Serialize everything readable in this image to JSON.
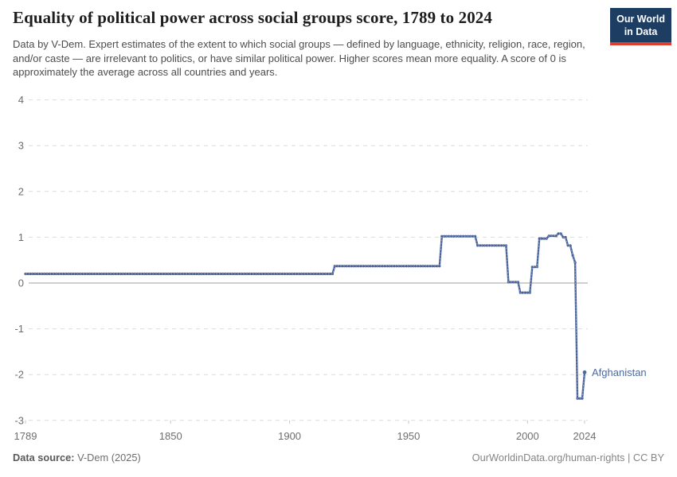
{
  "header": {
    "title": "Equality of political power across social groups score, 1789 to 2024",
    "subtitle": "Data by V-Dem. Expert estimates of the extent to which social groups — defined by language, ethnicity, religion, race, region, and/or caste — are irrelevant to politics, or have similar political power. Higher scores mean more equality. A score of 0 is approximately the average across all countries and years.",
    "logo": {
      "line1": "Our World",
      "line2": "in Data",
      "bg_color": "#1d3d63",
      "accent_color": "#dc3e31"
    }
  },
  "chart_data": {
    "type": "line",
    "title": "Equality of political power across social groups score",
    "entity": "Afghanistan",
    "x_range": [
      1789,
      2024
    ],
    "y_range": [
      -3,
      4
    ],
    "x_ticks": [
      1789,
      1850,
      1900,
      1950,
      2000,
      2024
    ],
    "y_ticks": [
      4,
      3,
      2,
      1,
      0,
      -1,
      -2,
      -3
    ],
    "grid": "horizontal dashed, solid zero line",
    "legend_position": "end-of-line label",
    "line_color": "#47629b",
    "label_color": "#4c6a9c",
    "series": [
      {
        "name": "Afghanistan",
        "segments": [
          {
            "from": 1789,
            "to": 1918,
            "value": 0.2
          },
          {
            "from": 1919,
            "to": 1963,
            "value": 0.37
          },
          {
            "from": 1964,
            "to": 1978,
            "value": 1.02
          },
          {
            "from": 1979,
            "to": 1991,
            "value": 0.82
          },
          {
            "from": 1992,
            "to": 1996,
            "value": 0.02
          },
          {
            "from": 1997,
            "to": 2001,
            "value": -0.21
          },
          {
            "from": 2002,
            "to": 2004,
            "value": 0.35
          },
          {
            "from": 2005,
            "to": 2008,
            "value": 0.97
          },
          {
            "from": 2009,
            "to": 2012,
            "value": 1.03
          },
          {
            "from": 2013,
            "to": 2014,
            "value": 1.08
          },
          {
            "from": 2015,
            "to": 2016,
            "value": 1.0
          },
          {
            "from": 2017,
            "to": 2018,
            "value": 0.82
          },
          {
            "from": 2019,
            "to": 2019,
            "value": 0.6
          },
          {
            "from": 2020,
            "to": 2020,
            "value": 0.45
          },
          {
            "from": 2021,
            "to": 2023,
            "value": -2.52
          },
          {
            "from": 2024,
            "to": 2024,
            "value": -1.95
          }
        ]
      }
    ],
    "end_label": {
      "text": "Afghanistan",
      "year": 2024,
      "value": -1.95
    }
  },
  "footer": {
    "source_label": "Data source:",
    "source_value": " V-Dem (2025)",
    "credit": "OurWorldinData.org/human-rights | CC BY"
  }
}
